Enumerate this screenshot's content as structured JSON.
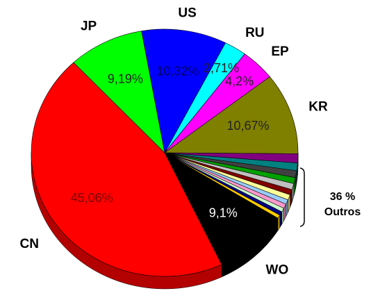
{
  "chart_data": {
    "type": "pie",
    "categories": [
      "US",
      "RU",
      "EP",
      "KR",
      null,
      null,
      null,
      null,
      null,
      null,
      null,
      null,
      null,
      null,
      null,
      null,
      "WO",
      "CN",
      "JP"
    ],
    "values": [
      10.32,
      2.71,
      4.2,
      10.67,
      1.2,
      1.0,
      0.9,
      0.8,
      0.8,
      0.7,
      0.7,
      0.6,
      0.6,
      0.5,
      0.5,
      0.45,
      9.1,
      45.06,
      9.19
    ],
    "value_labels": [
      "10,32%",
      "2,71%",
      "4,2%",
      "10,67%",
      null,
      null,
      null,
      null,
      null,
      null,
      null,
      null,
      null,
      null,
      null,
      null,
      "9,1%",
      "45,06%",
      "9,19%"
    ],
    "colors": [
      "#0000ff",
      "#00ffff",
      "#ff00ff",
      "#808000",
      "#800080",
      "#008080",
      "#404040",
      "#00a000",
      "#c0c0c0",
      "#800000",
      "#ffff99",
      "#99ccff",
      "#ff99cc",
      "#ccffcc",
      "#000080",
      "#ffcc00",
      "#000000",
      "#ff0000",
      "#00ff00"
    ],
    "annotation": [
      "36 %",
      "Outros"
    ]
  }
}
